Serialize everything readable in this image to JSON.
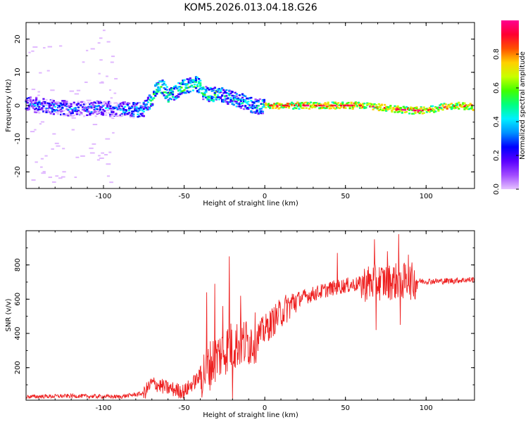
{
  "title": "KOM5.2026.013.04.18.G26",
  "chart_data": [
    {
      "type": "heatmap",
      "xlabel": "Height of straight line (km)",
      "ylabel": "Frequency (Hz)",
      "xlim": [
        -148,
        130
      ],
      "ylim": [
        -25,
        25
      ],
      "xticks": [
        -100,
        -50,
        0,
        50,
        100
      ],
      "yticks": [
        -20,
        -10,
        0,
        10,
        20
      ],
      "colorbar": {
        "label": "Normalized spectral amplitude",
        "range": [
          0.0,
          1.0
        ],
        "ticks": [
          "0.0",
          "0.2",
          "0.4",
          "0.6",
          "0.8"
        ],
        "colors": [
          "#e5c2ff",
          "#a24bff",
          "#5a00ff",
          "#0000ff",
          "#0090ff",
          "#00f0ff",
          "#00ff80",
          "#40ff00",
          "#c8ff00",
          "#ffd000",
          "#ff5000",
          "#ff0030",
          "#ff0090"
        ]
      },
      "ridge": {
        "x": [
          -148,
          -140,
          -130,
          -120,
          -110,
          -100,
          -90,
          -80,
          -75,
          -70,
          -67,
          -63,
          -60,
          -57,
          -53,
          -50,
          -46,
          -42,
          -38,
          -35,
          -30,
          -25,
          -20,
          -15,
          -10,
          -5,
          0,
          10,
          20,
          40,
          60,
          70,
          80,
          90,
          100,
          110,
          120,
          130
        ],
        "y": [
          0.5,
          0.0,
          -0.5,
          -1.0,
          -1.0,
          -1.0,
          -1.0,
          -1.5,
          -1.0,
          2.0,
          5.0,
          5.5,
          3.0,
          3.5,
          5.0,
          5.5,
          6.0,
          6.5,
          4.0,
          3.0,
          3.5,
          3.0,
          2.0,
          1.5,
          0.5,
          -0.5,
          0.0,
          0.0,
          0.0,
          0.0,
          0.0,
          -0.5,
          -1.0,
          -1.5,
          -1.5,
          -0.5,
          0.0,
          -0.5
        ]
      }
    },
    {
      "type": "line",
      "xlabel": "Height of straight line (km)",
      "ylabel": "SNR (v/v)",
      "xlim": [
        -148,
        130
      ],
      "ylim": [
        10,
        1000
      ],
      "xticks": [
        -100,
        -50,
        0,
        50,
        100
      ],
      "yticks": [
        200,
        400,
        600,
        800
      ],
      "color": "#ee2020",
      "envelope": {
        "x": [
          -148,
          -120,
          -90,
          -75,
          -70,
          -60,
          -50,
          -40,
          -30,
          -25,
          -20,
          -10,
          -5,
          0,
          10,
          20,
          30,
          40,
          50,
          60,
          70,
          80,
          90,
          100,
          110,
          120,
          130
        ],
        "y": [
          30,
          35,
          30,
          50,
          110,
          80,
          60,
          150,
          260,
          300,
          330,
          350,
          380,
          420,
          520,
          600,
          630,
          660,
          680,
          690,
          700,
          705,
          705,
          705,
          705,
          710,
          715
        ]
      },
      "spikes": [
        {
          "x": -36,
          "y": 640
        },
        {
          "x": -31,
          "y": 690
        },
        {
          "x": -26,
          "y": 560
        },
        {
          "x": -22,
          "y": 850
        },
        {
          "x": -20,
          "y": 20
        },
        {
          "x": -15,
          "y": 620
        },
        {
          "x": 45,
          "y": 870
        },
        {
          "x": 68,
          "y": 950
        },
        {
          "x": 69,
          "y": 420
        },
        {
          "x": 76,
          "y": 880
        },
        {
          "x": 83,
          "y": 980
        },
        {
          "x": 84,
          "y": 450
        },
        {
          "x": 89,
          "y": 860
        }
      ]
    }
  ]
}
